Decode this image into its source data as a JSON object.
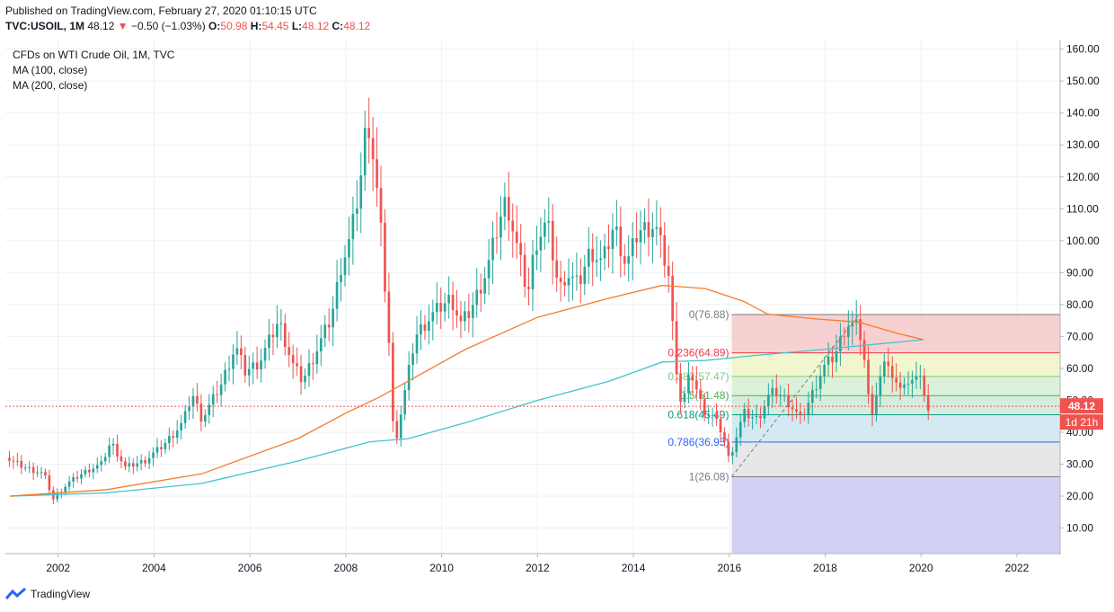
{
  "header": {
    "published": "Published on TradingView.com, February 27, 2020 01:10:15 UTC",
    "symbol": "TVC:USOIL, 1M",
    "last": "48.12",
    "change": "−0.50 (−1.03%)",
    "o_label": "O:",
    "o_value": "50.98",
    "h_label": "H:",
    "h_value": "54.45",
    "l_label": "L:",
    "l_value": "48.12",
    "c_label": "C:",
    "c_value": "48.12"
  },
  "legend": {
    "title": "CFDs on WTI Crude Oil, 1M, TVC",
    "ma100": "MA (100, close)",
    "ma200": "MA (200, close)"
  },
  "footer": {
    "brand": "TradingView"
  },
  "colors": {
    "up": "#26a69a",
    "down": "#ef5350",
    "ma100": "#f57c2a",
    "ma200": "#40c4d0",
    "grid": "#eef0f3",
    "axis_text": "#131722",
    "price_line": "#ef5350"
  },
  "chart_data": {
    "type": "candlestick",
    "x_ticks": [
      "2002",
      "2004",
      "2006",
      "2008",
      "2010",
      "2012",
      "2014",
      "2016",
      "2018",
      "2020",
      "2022"
    ],
    "y_ticks": [
      10,
      20,
      30,
      40,
      50,
      60,
      70,
      80,
      90,
      100,
      110,
      120,
      130,
      140,
      150,
      160
    ],
    "y_tick_labels": [
      "10.00",
      "20.00",
      "30.00",
      "40.00",
      "50.00",
      "60.00",
      "70.00",
      "80.00",
      "90.00",
      "100.00",
      "110.00",
      "120.00",
      "130.00",
      "140.00",
      "150.00",
      "160.00"
    ],
    "ylim": [
      2,
      163
    ],
    "xlim": [
      2000.9,
      2022.9
    ],
    "current_price": 48.12,
    "current_price_label": "48.12",
    "countdown_label": "1d 21h",
    "price_path": [
      [
        2000.9,
        32
      ],
      [
        2001.3,
        29
      ],
      [
        2001.7,
        27
      ],
      [
        2001.9,
        19
      ],
      [
        2002.2,
        24
      ],
      [
        2002.6,
        28
      ],
      [
        2002.9,
        30
      ],
      [
        2003.1,
        37
      ],
      [
        2003.4,
        29
      ],
      [
        2003.8,
        31
      ],
      [
        2004.2,
        36
      ],
      [
        2004.6,
        43
      ],
      [
        2004.8,
        52
      ],
      [
        2005.0,
        44
      ],
      [
        2005.4,
        55
      ],
      [
        2005.7,
        67
      ],
      [
        2005.9,
        59
      ],
      [
        2006.2,
        62
      ],
      [
        2006.6,
        75
      ],
      [
        2006.9,
        61
      ],
      [
        2007.1,
        56
      ],
      [
        2007.4,
        66
      ],
      [
        2007.7,
        76
      ],
      [
        2007.9,
        92
      ],
      [
        2008.1,
        101
      ],
      [
        2008.3,
        118
      ],
      [
        2008.45,
        140
      ],
      [
        2008.6,
        123
      ],
      [
        2008.75,
        100
      ],
      [
        2008.9,
        68
      ],
      [
        2008.95,
        45
      ],
      [
        2009.05,
        38
      ],
      [
        2009.2,
        50
      ],
      [
        2009.45,
        70
      ],
      [
        2009.7,
        75
      ],
      [
        2009.95,
        79
      ],
      [
        2010.2,
        82
      ],
      [
        2010.4,
        74
      ],
      [
        2010.6,
        78
      ],
      [
        2010.95,
        91
      ],
      [
        2011.2,
        106
      ],
      [
        2011.35,
        113
      ],
      [
        2011.6,
        96
      ],
      [
        2011.8,
        83
      ],
      [
        2011.95,
        99
      ],
      [
        2012.2,
        106
      ],
      [
        2012.45,
        84
      ],
      [
        2012.6,
        90
      ],
      [
        2012.85,
        86
      ],
      [
        2013.1,
        97
      ],
      [
        2013.35,
        93
      ],
      [
        2013.6,
        105
      ],
      [
        2013.85,
        92
      ],
      [
        2014.1,
        103
      ],
      [
        2014.45,
        105
      ],
      [
        2014.6,
        97
      ],
      [
        2014.75,
        88
      ],
      [
        2014.85,
        66
      ],
      [
        2015.0,
        48
      ],
      [
        2015.2,
        59
      ],
      [
        2015.45,
        47
      ],
      [
        2015.65,
        45
      ],
      [
        2015.85,
        40
      ],
      [
        2016.0,
        31
      ],
      [
        2016.05,
        34
      ],
      [
        2016.3,
        46
      ],
      [
        2016.6,
        44
      ],
      [
        2016.8,
        51
      ],
      [
        2016.95,
        53
      ],
      [
        2017.2,
        50
      ],
      [
        2017.5,
        44
      ],
      [
        2017.7,
        51
      ],
      [
        2017.95,
        60
      ],
      [
        2018.2,
        64
      ],
      [
        2018.45,
        74
      ],
      [
        2018.7,
        73
      ],
      [
        2018.8,
        65
      ],
      [
        2018.9,
        51
      ],
      [
        2018.95,
        45
      ],
      [
        2019.15,
        57
      ],
      [
        2019.3,
        63
      ],
      [
        2019.45,
        54
      ],
      [
        2019.6,
        56
      ],
      [
        2019.8,
        54
      ],
      [
        2019.95,
        61
      ],
      [
        2020.05,
        51
      ],
      [
        2020.15,
        48.12
      ]
    ],
    "ma100_path": [
      [
        2001.0,
        20
      ],
      [
        2003.0,
        22
      ],
      [
        2005.0,
        27
      ],
      [
        2007.0,
        38
      ],
      [
        2008.0,
        46
      ],
      [
        2008.7,
        51
      ],
      [
        2009.3,
        56
      ],
      [
        2010.5,
        66
      ],
      [
        2012.0,
        76
      ],
      [
        2013.5,
        82
      ],
      [
        2014.6,
        86
      ],
      [
        2015.5,
        85
      ],
      [
        2016.3,
        81
      ],
      [
        2016.8,
        77
      ],
      [
        2017.8,
        75.5
      ],
      [
        2018.7,
        74.5
      ],
      [
        2019.5,
        71
      ],
      [
        2020.05,
        69
      ]
    ],
    "ma200_path": [
      [
        2001.0,
        20
      ],
      [
        2003.0,
        21
      ],
      [
        2005.0,
        24
      ],
      [
        2007.0,
        31
      ],
      [
        2008.5,
        37
      ],
      [
        2009.3,
        38
      ],
      [
        2010.5,
        43
      ],
      [
        2012.0,
        50
      ],
      [
        2013.5,
        56
      ],
      [
        2014.6,
        62
      ],
      [
        2015.5,
        62.5
      ],
      [
        2016.5,
        64
      ],
      [
        2018.0,
        66
      ],
      [
        2019.0,
        67.5
      ],
      [
        2020.05,
        69
      ]
    ],
    "fib_low": 26.08,
    "fib_high": 76.88,
    "fib_start_x": 2016.05,
    "fib_levels": [
      {
        "label": "0(76.88)",
        "value": 76.88,
        "color": "#787b86"
      },
      {
        "label": "0.236(64.89)",
        "value": 64.89,
        "color": "#f23645"
      },
      {
        "label": "0.382(57.47)",
        "value": 57.47,
        "color": "#81c784"
      },
      {
        "label": "0.5(51.48)",
        "value": 51.48,
        "color": "#4caf50"
      },
      {
        "label": "0.618(45.49)",
        "value": 45.49,
        "color": "#089981"
      },
      {
        "label": "0.786(36.95)",
        "value": 36.95,
        "color": "#2962ff"
      },
      {
        "label": "1(26.08)",
        "value": 26.08,
        "color": "#787b86"
      }
    ],
    "trend_line": [
      [
        2016.05,
        26.08
      ],
      [
        2018.7,
        76.88
      ]
    ]
  }
}
